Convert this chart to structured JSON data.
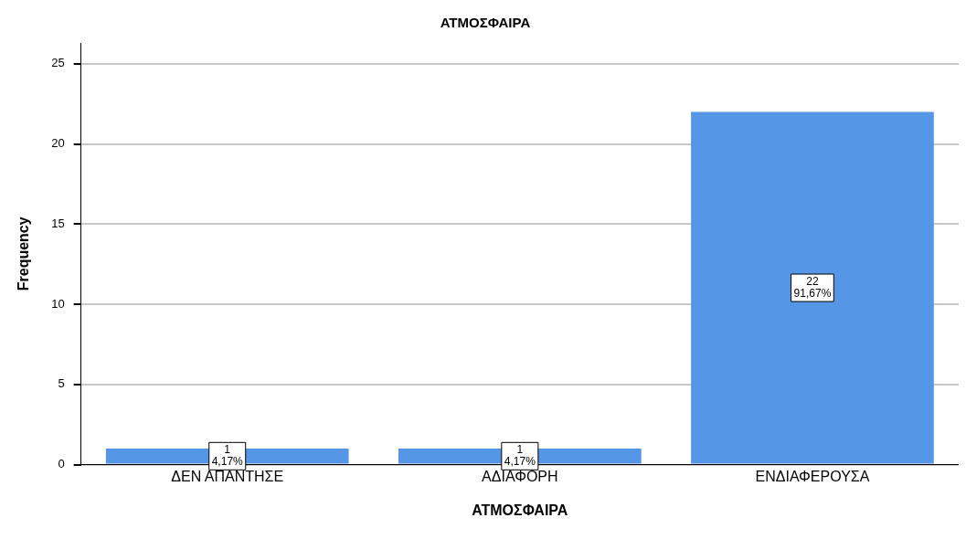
{
  "chart_data": {
    "type": "bar",
    "title": "ΑΤΜΟΣΦΑΙΡΑ",
    "xlabel": "ΑΤΜΟΣΦΑΙΡΑ",
    "ylabel": "Frequency",
    "categories": [
      "ΔΕΝ ΑΠΑΝΤΗΣΕ",
      "ΑΔΙΑΦΟΡΗ",
      "ΕΝΔΙΑΦΕΡΟΥΣΑ"
    ],
    "values": [
      1,
      1,
      22
    ],
    "color": "#5596e6",
    "value_labels": [
      "1\n4,17%",
      "1\n4,17%",
      "22\n91,67%"
    ],
    "ylim": [
      0,
      26.3
    ],
    "yticks": [
      0,
      5,
      10,
      15,
      20,
      25
    ],
    "grid": "y",
    "legend": false
  }
}
